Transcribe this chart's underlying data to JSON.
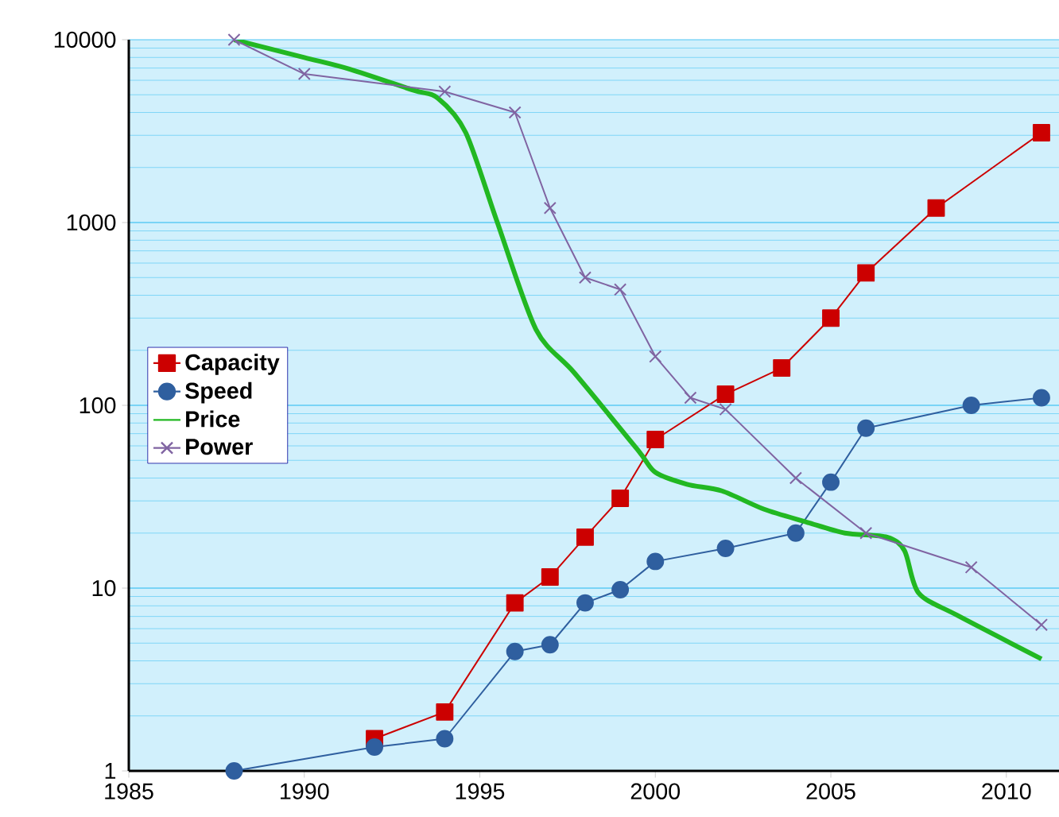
{
  "chart_data": {
    "type": "line",
    "log": "y",
    "grid": "y",
    "legend": "left",
    "xlim": [
      1985,
      2011.5
    ],
    "ylim": [
      1,
      10000
    ],
    "xticks": [
      1985,
      1990,
      1995,
      2000,
      2005,
      2010
    ],
    "yticks": [
      1,
      10,
      100,
      1000,
      10000
    ],
    "series": [
      {
        "name": "Capacity",
        "color": "#cc0000",
        "marker": "square",
        "x": [
          1992,
          1994,
          1996,
          1997,
          1998,
          1999,
          2000,
          2002,
          2003.6,
          2005,
          2006,
          2008,
          2011
        ],
        "values": [
          1.5,
          2.1,
          8.3,
          11.5,
          19,
          31,
          65,
          115,
          160,
          300,
          530,
          1200,
          3100
        ]
      },
      {
        "name": "Speed",
        "color": "#2f5f9f",
        "marker": "circle",
        "x": [
          1988,
          1992,
          1994,
          1996,
          1997,
          1998,
          1999,
          2000,
          2002,
          2004,
          2005,
          2006,
          2009,
          2011
        ],
        "values": [
          1,
          1.35,
          1.5,
          4.5,
          4.9,
          8.3,
          9.8,
          14,
          16.5,
          20,
          38,
          75,
          100,
          110
        ]
      },
      {
        "name": "Price",
        "color": "#22b822",
        "marker": "none",
        "x": [
          1988,
          1990,
          1991.3,
          1993.1,
          1993.8,
          1994.6,
          1995.5,
          1996.6,
          1997.7,
          1999.5,
          2000,
          2000.9,
          2001.9,
          2003.1,
          2004.3,
          2005.4,
          2006.6,
          2007.1,
          2007.5,
          2008.6,
          2011
        ],
        "values": [
          10000,
          8000,
          6900,
          5300,
          4800,
          3100,
          1000,
          260,
          150,
          57,
          43,
          37,
          34,
          27,
          23,
          20,
          19,
          16,
          9.4,
          7.1,
          4.1
        ]
      },
      {
        "name": "Power",
        "color": "#8064a2",
        "marker": "cross",
        "x": [
          1988,
          1990,
          1994,
          1996,
          1997,
          1998,
          1999,
          2000,
          2001,
          2002,
          2004,
          2006,
          2009,
          2011
        ],
        "values": [
          10000,
          6500,
          5200,
          4000,
          1200,
          500,
          430,
          185,
          110,
          95,
          40,
          20,
          13,
          6.3
        ]
      }
    ]
  }
}
